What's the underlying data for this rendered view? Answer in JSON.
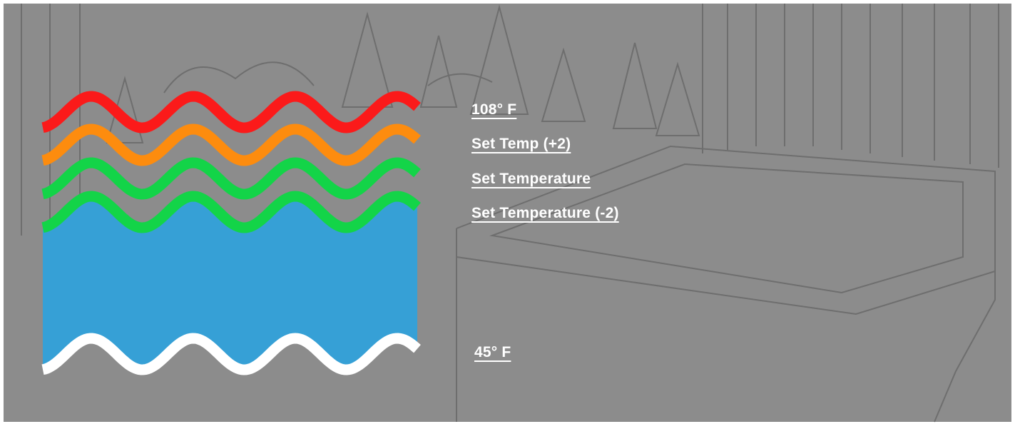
{
  "colors": {
    "frame": "#ffffff",
    "background": "#8c8c8c",
    "sketch": "#6e6e6e",
    "water": "#36a0d6",
    "max_wave": "#fb1a1a",
    "plus_two_wave": "#fd8c0e",
    "set_wave": "#13d448",
    "minus_two_wave": "#13d448",
    "base_wave": "#ffffff",
    "label_text": "#ffffff"
  },
  "background_scene": {
    "description_icon": "hot-tub-backyard-sketch"
  },
  "levels": [
    {
      "key": "max",
      "label": "108° F",
      "wave_color": "#fb1a1a"
    },
    {
      "key": "plus_two",
      "label": "Set Temp (+2)",
      "wave_color": "#fd8c0e"
    },
    {
      "key": "set",
      "label": "Set Temperature",
      "wave_color": "#13d448"
    },
    {
      "key": "minus_two",
      "label": "Set Temperature (-2)",
      "wave_color": "#13d448"
    },
    {
      "key": "min",
      "label": "45° F",
      "wave_color": "#ffffff"
    }
  ]
}
